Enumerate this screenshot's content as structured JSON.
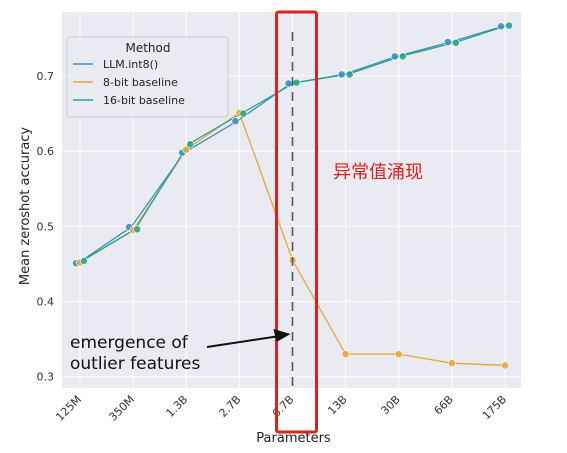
{
  "chart_data": {
    "type": "line",
    "xlabel": "Parameters",
    "ylabel": "Mean zeroshot accuracy",
    "categories": [
      "125M",
      "350M",
      "1.3B",
      "2.7B",
      "6.7B",
      "13B",
      "30B",
      "66B",
      "175B"
    ],
    "ylim": [
      0.285,
      0.785
    ],
    "yticks": [
      0.3,
      0.4,
      0.5,
      0.6,
      0.7
    ],
    "grid": true,
    "legend": {
      "title": "Method",
      "placement": "top-left"
    },
    "series": [
      {
        "name": "LLM.int8()",
        "color": "#3a8fc1",
        "values": [
          0.451,
          0.499,
          0.598,
          0.64,
          0.69,
          0.702,
          0.726,
          0.745,
          0.766
        ]
      },
      {
        "name": "8-bit baseline",
        "color": "#e5a73b",
        "values": [
          0.452,
          0.495,
          0.602,
          0.651,
          0.455,
          0.33,
          0.33,
          0.318,
          0.315
        ]
      },
      {
        "name": "16-bit baseline",
        "color": "#26a58a",
        "values": [
          0.454,
          0.496,
          0.609,
          0.65,
          0.691,
          0.702,
          0.726,
          0.744,
          0.767
        ]
      }
    ],
    "highlight": {
      "category": "6.7B",
      "box_color": "#e0201a",
      "dashed_line": true
    },
    "annotations": [
      {
        "text": "emergence of\noutlier features",
        "points_to": "6.7B",
        "arrow": true
      },
      {
        "text": "异常值涌现",
        "color": "#e0201a"
      }
    ]
  }
}
